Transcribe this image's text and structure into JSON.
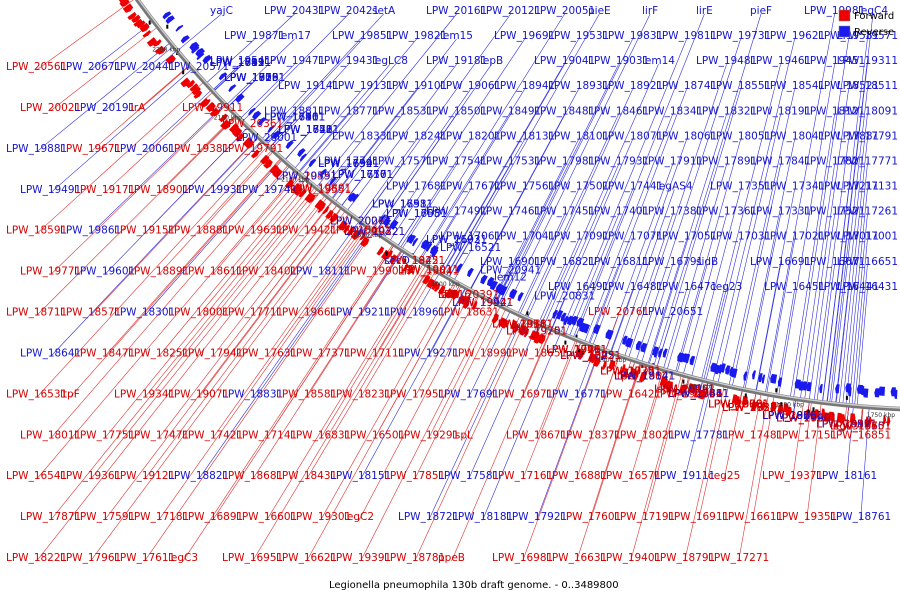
{
  "caption": "Legionella pneumophila 130b draft genome. - 0..3489800",
  "legend": [
    {
      "label": "Forward",
      "color": "#ee0000"
    },
    {
      "label": "Reverse",
      "color": "#1a1aee"
    }
  ],
  "scale_ticks": [
    "2250 kbp",
    "2200 kbp",
    "2150 kbp",
    "2100 kbp",
    "2050 kbp",
    "2000 kbp",
    "1950 kbp",
    "1900 kbp",
    "1850 kbp",
    "1800 kbp",
    "1750 kbp"
  ],
  "labels": [
    {
      "t": "yajC",
      "s": "r"
    },
    {
      "t": "LPW_20431",
      "s": "r"
    },
    {
      "t": "LPW_20421",
      "s": "r"
    },
    {
      "t": "setA",
      "s": "r"
    },
    {
      "t": "LPW_20161",
      "s": "r"
    },
    {
      "t": "LPW_20121",
      "s": "r"
    },
    {
      "t": "LPW_20051",
      "s": "r"
    },
    {
      "t": "pieE",
      "s": "r"
    },
    {
      "t": "lirF",
      "s": "r"
    },
    {
      "t": "lirE",
      "s": "r"
    },
    {
      "t": "pieF",
      "s": "r"
    },
    {
      "t": "LPW_19981",
      "s": "r"
    },
    {
      "t": "legC4",
      "s": "r"
    },
    {
      "t": "LPW_19871",
      "s": "r"
    },
    {
      "t": "lem17",
      "s": "r"
    },
    {
      "t": "LPW_19851",
      "s": "r"
    },
    {
      "t": "LPW_19821",
      "s": "r"
    },
    {
      "t": "lem15",
      "s": "r"
    },
    {
      "t": "LPW_19691",
      "s": "r"
    },
    {
      "t": "LPW_19531",
      "s": "r"
    },
    {
      "t": "LPW_19831",
      "s": "r"
    },
    {
      "t": "LPW_19811",
      "s": "r"
    },
    {
      "t": "LPW_19731",
      "s": "r"
    },
    {
      "t": "LPW_19621",
      "s": "r"
    },
    {
      "t": "LPW_19581",
      "s": "r"
    },
    {
      "t": "LPW_19571",
      "s": "r"
    },
    {
      "t": "LPW_19541",
      "s": "r"
    },
    {
      "t": "LPW_19471",
      "s": "r"
    },
    {
      "t": "LPW_19431",
      "s": "r"
    },
    {
      "t": "legLC8",
      "s": "r"
    },
    {
      "t": "LPW_19181",
      "s": "r"
    },
    {
      "t": "lepB",
      "s": "r"
    },
    {
      "t": "LPW_19041",
      "s": "r"
    },
    {
      "t": "LPW_19031",
      "s": "r"
    },
    {
      "t": "lem14",
      "s": "r"
    },
    {
      "t": "LPW_19481",
      "s": "r"
    },
    {
      "t": "LPW_19461",
      "s": "r"
    },
    {
      "t": "LPW_19451",
      "s": "r"
    },
    {
      "t": "LPW_19311",
      "s": "r"
    },
    {
      "t": "LPW_19191",
      "s": "r"
    },
    {
      "t": "LPW_19141",
      "s": "r"
    },
    {
      "t": "LPW_19131",
      "s": "r"
    },
    {
      "t": "LPW_19101",
      "s": "r"
    },
    {
      "t": "LPW_19061",
      "s": "r"
    },
    {
      "t": "LPW_18941",
      "s": "r"
    },
    {
      "t": "LPW_18931",
      "s": "r"
    },
    {
      "t": "LPW_18921",
      "s": "r"
    },
    {
      "t": "LPW_18741",
      "s": "r"
    },
    {
      "t": "LPW_18551",
      "s": "r"
    },
    {
      "t": "LPW_18541",
      "s": "r"
    },
    {
      "t": "LPW_18521",
      "s": "r"
    },
    {
      "t": "LPW_18511",
      "s": "r"
    },
    {
      "t": "LPW_18911",
      "s": "r"
    },
    {
      "t": "LPW_18811",
      "s": "r"
    },
    {
      "t": "LPW_18771",
      "s": "r"
    },
    {
      "t": "LPW_18531",
      "s": "r"
    },
    {
      "t": "LPW_18501",
      "s": "r"
    },
    {
      "t": "LPW_18491",
      "s": "r"
    },
    {
      "t": "LPW_18481",
      "s": "r"
    },
    {
      "t": "LPW_18461",
      "s": "r"
    },
    {
      "t": "LPW_18341",
      "s": "r"
    },
    {
      "t": "LPW_18321",
      "s": "r"
    },
    {
      "t": "LPW_18191",
      "s": "r"
    },
    {
      "t": "LPW_18121",
      "s": "r"
    },
    {
      "t": "LPW_18091",
      "s": "r"
    },
    {
      "t": "LPW_18081",
      "s": "r"
    },
    {
      "t": "LPW_18411",
      "s": "r"
    },
    {
      "t": "LPW_18331",
      "s": "r"
    },
    {
      "t": "LPW_18241",
      "s": "r"
    },
    {
      "t": "LPW_18201",
      "s": "r"
    },
    {
      "t": "LPW_18131",
      "s": "r"
    },
    {
      "t": "LPW_18101",
      "s": "r"
    },
    {
      "t": "LPW_18071",
      "s": "r"
    },
    {
      "t": "LPW_18061",
      "s": "r"
    },
    {
      "t": "LPW_18051",
      "s": "r"
    },
    {
      "t": "LPW_18041",
      "s": "r"
    },
    {
      "t": "LPW_17881",
      "s": "r"
    },
    {
      "t": "LPW_17791",
      "s": "r"
    },
    {
      "t": "LPW_17831",
      "s": "r"
    },
    {
      "t": "LPW_17811",
      "s": "r"
    },
    {
      "t": "LPW_17741",
      "s": "r"
    },
    {
      "t": "LPW_17571",
      "s": "r"
    },
    {
      "t": "LPW_17541",
      "s": "r"
    },
    {
      "t": "LPW_17531",
      "s": "r"
    },
    {
      "t": "LPW_17981",
      "s": "r"
    },
    {
      "t": "LPW_17931",
      "s": "r"
    },
    {
      "t": "LPW_17911",
      "s": "r"
    },
    {
      "t": "LPW_17891",
      "s": "r"
    },
    {
      "t": "LPW_17841",
      "s": "r"
    },
    {
      "t": "LPW_17821",
      "s": "r"
    },
    {
      "t": "LPW_17771",
      "s": "r"
    },
    {
      "t": "LPW_17761",
      "s": "r"
    },
    {
      "t": "LPW_17721",
      "s": "r"
    },
    {
      "t": "LPW_17701",
      "s": "r"
    },
    {
      "t": "LPW_17681",
      "s": "r"
    },
    {
      "t": "LPW_17671",
      "s": "r"
    },
    {
      "t": "LPW_17561",
      "s": "r"
    },
    {
      "t": "LPW_17501",
      "s": "r"
    },
    {
      "t": "LPW_17441",
      "s": "r"
    },
    {
      "t": "legAS4",
      "s": "r"
    },
    {
      "t": "LPW_17351",
      "s": "r"
    },
    {
      "t": "LPW_17341",
      "s": "r"
    },
    {
      "t": "LPW_17211",
      "s": "r"
    },
    {
      "t": "LPW_17131",
      "s": "r"
    },
    {
      "t": "LPW_17121",
      "s": "r"
    },
    {
      "t": "LPW_17101",
      "s": "r"
    },
    {
      "t": "LPW_17521",
      "s": "r"
    },
    {
      "t": "LPW_17511",
      "s": "r"
    },
    {
      "t": "LPW_17491",
      "s": "r"
    },
    {
      "t": "LPW_17461",
      "s": "r"
    },
    {
      "t": "LPW_17451",
      "s": "r"
    },
    {
      "t": "LPW_17401",
      "s": "r"
    },
    {
      "t": "LPW_17381",
      "s": "r"
    },
    {
      "t": "LPW_17361",
      "s": "r"
    },
    {
      "t": "LPW_17331",
      "s": "r"
    },
    {
      "t": "LPW_17321",
      "s": "r"
    },
    {
      "t": "LPW_17261",
      "s": "r"
    },
    {
      "t": "LPW_17251",
      "s": "r"
    },
    {
      "t": "LPW_17201",
      "s": "r"
    },
    {
      "t": "LPW_17171",
      "s": "r"
    },
    {
      "t": "LPW_17081",
      "s": "r"
    },
    {
      "t": "LPW_17061",
      "s": "r"
    },
    {
      "t": "LPW_17041",
      "s": "r"
    },
    {
      "t": "LPW_17091",
      "s": "r"
    },
    {
      "t": "LPW_17071",
      "s": "r"
    },
    {
      "t": "LPW_17051",
      "s": "r"
    },
    {
      "t": "LPW_17031",
      "s": "r"
    },
    {
      "t": "LPW_17021",
      "s": "r"
    },
    {
      "t": "LPW_17011",
      "s": "r"
    },
    {
      "t": "LPW_17001",
      "s": "r"
    },
    {
      "t": "LPW_16991",
      "s": "r"
    },
    {
      "t": "LPW_16961",
      "s": "r"
    },
    {
      "t": "LPW_16941",
      "s": "r"
    },
    {
      "t": "LPW_16931",
      "s": "r"
    },
    {
      "t": "LPW_16921",
      "s": "r"
    },
    {
      "t": "LPW_16901",
      "s": "r"
    },
    {
      "t": "LPW_16821",
      "s": "r"
    },
    {
      "t": "LPW_16811",
      "s": "r"
    },
    {
      "t": "LPW_16791",
      "s": "r"
    },
    {
      "t": "sidB",
      "s": "r"
    },
    {
      "t": "LPW_16691",
      "s": "r"
    },
    {
      "t": "LPW_16671",
      "s": "r"
    },
    {
      "t": "LPW_16651",
      "s": "r"
    },
    {
      "t": "LPW_16591",
      "s": "r"
    },
    {
      "t": "LPW_16581",
      "s": "r"
    },
    {
      "t": "LPW_16561",
      "s": "r"
    },
    {
      "t": "LPW_16551",
      "s": "r"
    },
    {
      "t": "LPW_16521",
      "s": "r"
    },
    {
      "t": "lem12",
      "s": "r"
    },
    {
      "t": "LPW_16491",
      "s": "r"
    },
    {
      "t": "LPW_16481",
      "s": "r"
    },
    {
      "t": "LPW_16471",
      "s": "r"
    },
    {
      "t": "ceg23",
      "s": "r"
    },
    {
      "t": "LPW_16451",
      "s": "r"
    },
    {
      "t": "LPW_16441",
      "s": "r"
    },
    {
      "t": "LPW_16431",
      "s": "r"
    },
    {
      "t": "LPW_16411",
      "s": "r"
    },
    {
      "t": "LPW_16401",
      "s": "r"
    },
    {
      "t": "LPW_16391",
      "s": "r"
    },
    {
      "t": "LPW_16381",
      "s": "r"
    },
    {
      "t": "LPW_21031",
      "s": "r"
    },
    {
      "t": "LPW_20941",
      "s": "r"
    },
    {
      "t": "LPW_20831",
      "s": "r"
    },
    {
      "t": "LPW_20761",
      "s": "f"
    },
    {
      "t": "LPW_20651",
      "s": "r"
    },
    {
      "t": "LPW_20561",
      "s": "f"
    },
    {
      "t": "LPW_20671",
      "s": "r"
    },
    {
      "t": "LPW_20441",
      "s": "r"
    },
    {
      "t": "LPW_20571",
      "s": "r"
    },
    {
      "t": "LPW_20361",
      "s": "f"
    },
    {
      "t": "LPW_20451",
      "s": "f"
    },
    {
      "t": "LPW_20261",
      "s": "f"
    },
    {
      "t": "secD",
      "s": "r"
    },
    {
      "t": "LPW_20391",
      "s": "f"
    },
    {
      "t": "LPW_20181",
      "s": "f"
    },
    {
      "t": "LPW_20461",
      "s": "f"
    },
    {
      "t": "LPW_20301",
      "s": "f"
    },
    {
      "t": "LPW_20101",
      "s": "f"
    },
    {
      "t": "LPW_20381",
      "s": "f"
    },
    {
      "t": "LPW_20211",
      "s": "f"
    },
    {
      "t": "LPW_20171",
      "s": "f"
    },
    {
      "t": "LPW_20021",
      "s": "f"
    },
    {
      "t": "LPW_20191",
      "s": "r"
    },
    {
      "t": "lirA",
      "s": "f"
    },
    {
      "t": "LPW_19911",
      "s": "f"
    },
    {
      "t": "LPW_20001",
      "s": "r"
    },
    {
      "t": "LPW_19801",
      "s": "f"
    },
    {
      "t": "LPW_20221",
      "s": "f"
    },
    {
      "t": "lirB",
      "s": "f"
    },
    {
      "t": "LPW_19921",
      "s": "r"
    },
    {
      "t": "LPW_19701",
      "s": "f"
    },
    {
      "t": "LPW_20231",
      "s": "f"
    },
    {
      "t": "LPW_19841",
      "s": "f"
    },
    {
      "t": "LPW_19611",
      "s": "r"
    },
    {
      "t": "LPW_20241",
      "s": "f"
    },
    {
      "t": "LPW_20031",
      "s": "f"
    },
    {
      "t": "LPW_19501",
      "s": "r"
    },
    {
      "t": "LPW_19881",
      "s": "r"
    },
    {
      "t": "LPW_19671",
      "s": "f"
    },
    {
      "t": "LPW_20061",
      "s": "r"
    },
    {
      "t": "LPW_19381",
      "s": "f"
    },
    {
      "t": "LPW_19791",
      "s": "f"
    },
    {
      "t": "LPW_19591",
      "s": "r"
    },
    {
      "t": "LPW_20071",
      "s": "r"
    },
    {
      "t": "LPW_19221",
      "s": "f"
    },
    {
      "t": "lem16",
      "s": "f"
    },
    {
      "t": "LPW_19511",
      "s": "f"
    },
    {
      "t": "LPW_19711",
      "s": "f"
    },
    {
      "t": "LPW_19241",
      "s": "f"
    },
    {
      "t": "lspM",
      "s": "f"
    },
    {
      "t": "LPW_20081",
      "s": "f"
    },
    {
      "t": "LPW_19681",
      "s": "f"
    },
    {
      "t": "LPW_19891",
      "s": "r"
    },
    {
      "t": "LPW_19491",
      "s": "r"
    },
    {
      "t": "LPW_19171",
      "s": "f"
    },
    {
      "t": "LPW_18901",
      "s": "f"
    },
    {
      "t": "LPW_19931",
      "s": "r"
    },
    {
      "t": "LPW_19741",
      "s": "r"
    },
    {
      "t": "LPW_19551",
      "s": "f"
    },
    {
      "t": "LPW_19321",
      "s": "r"
    },
    {
      "t": "LPW_19011",
      "s": "f"
    },
    {
      "t": "LPW_19941",
      "s": "r"
    },
    {
      "t": "LPW_19751",
      "s": "r"
    },
    {
      "t": "LPW_18731",
      "s": "r"
    },
    {
      "t": "ltpG",
      "s": "f"
    },
    {
      "t": "LPW_19521",
      "s": "f"
    },
    {
      "t": "LPW_19331",
      "s": "f"
    },
    {
      "t": "LPW_19021",
      "s": "f"
    },
    {
      "t": "LPW_18751",
      "s": "f"
    },
    {
      "t": "LPW_18591",
      "s": "f"
    },
    {
      "t": "LPW_19861",
      "s": "r"
    },
    {
      "t": "LPW_19151",
      "s": "f"
    },
    {
      "t": "LPW_18881",
      "s": "f"
    },
    {
      "t": "LPW_19631",
      "s": "f"
    },
    {
      "t": "LPW_19421",
      "s": "f"
    },
    {
      "t": "LPW_18601",
      "s": "f"
    },
    {
      "t": "LPW_18451",
      "s": "f"
    },
    {
      "t": "ralF",
      "s": "f"
    },
    {
      "t": "LPW_19761",
      "s": "f"
    },
    {
      "t": "LPW_19561",
      "s": "f"
    },
    {
      "t": "LPW_19251",
      "s": "f"
    },
    {
      "t": "LPW_18981",
      "s": "r"
    },
    {
      "t": "LPW_18701",
      "s": "f"
    },
    {
      "t": "LPW_18561",
      "s": "f"
    },
    {
      "t": "LPW_18351",
      "s": "r"
    },
    {
      "t": "LPW_19771",
      "s": "f"
    },
    {
      "t": "LPW_19601",
      "s": "r"
    },
    {
      "t": "LPW_18891",
      "s": "f"
    },
    {
      "t": "LPW_18611",
      "s": "f"
    },
    {
      "t": "LPW_18401",
      "s": "f"
    },
    {
      "t": "LPW_18111",
      "s": "r"
    },
    {
      "t": "LPW_19901",
      "s": "f"
    },
    {
      "t": "LPW_19641",
      "s": "f"
    },
    {
      "t": "LPW_19441",
      "s": "f"
    },
    {
      "t": "LPW_19201",
      "s": "f"
    },
    {
      "t": "LPW_18951",
      "s": "r"
    },
    {
      "t": "LPW_18621",
      "s": "f"
    },
    {
      "t": "LPW_18441",
      "s": "f"
    },
    {
      "t": "LPW_18211",
      "s": "f"
    },
    {
      "t": "LPW_17901",
      "s": "r"
    },
    {
      "t": "LPW_19651",
      "s": "f"
    },
    {
      "t": "LPW_18711",
      "s": "f"
    },
    {
      "t": "LPW_18571",
      "s": "f"
    },
    {
      "t": "LPW_18301",
      "s": "r"
    },
    {
      "t": "LPW_18001",
      "s": "f"
    },
    {
      "t": "LPW_17711",
      "s": "f"
    },
    {
      "t": "LPW_19661",
      "s": "f"
    },
    {
      "t": "LPW_19211",
      "s": "r"
    },
    {
      "t": "LPW_18961",
      "s": "r"
    },
    {
      "t": "LPW_18631",
      "s": "f"
    },
    {
      "t": "LPW_18381",
      "s": "f"
    },
    {
      "t": "LPW_17991",
      "s": "f"
    },
    {
      "t": "LPW_17731",
      "s": "f"
    },
    {
      "t": "LPW_17431",
      "s": "f"
    },
    {
      "t": "LPW_19781",
      "s": "f"
    },
    {
      "t": "LPW_19261",
      "s": "r"
    },
    {
      "t": "LPW_18971",
      "s": "r"
    },
    {
      "t": "LPW_18641",
      "s": "r"
    },
    {
      "t": "LPW_18471",
      "s": "f"
    },
    {
      "t": "LPW_18251",
      "s": "f"
    },
    {
      "t": "LPW_17941",
      "s": "f"
    },
    {
      "t": "LPW_17631",
      "s": "f"
    },
    {
      "t": "LPW_17371",
      "s": "f"
    },
    {
      "t": "LPW_17111",
      "s": "f"
    },
    {
      "t": "LPW_19271",
      "s": "r"
    },
    {
      "t": "LPW_18991",
      "s": "f"
    },
    {
      "t": "LPW_18651",
      "s": "f"
    },
    {
      "t": "LPW_18421",
      "s": "f"
    },
    {
      "t": "LPW_18141",
      "s": "r"
    },
    {
      "t": "LPW_17861",
      "s": "r"
    },
    {
      "t": "LPW_17551",
      "s": "f"
    },
    {
      "t": "LPW_17221",
      "s": "f"
    },
    {
      "t": "legL3",
      "s": "f"
    },
    {
      "t": "LPW_16531",
      "s": "f"
    },
    {
      "t": "ltpF",
      "s": "f"
    },
    {
      "t": "LPW_19341",
      "s": "f"
    },
    {
      "t": "LPW_19071",
      "s": "f"
    },
    {
      "t": "LPW_18831",
      "s": "r"
    },
    {
      "t": "LPW_18581",
      "s": "f"
    },
    {
      "t": "LPW_18231",
      "s": "f"
    },
    {
      "t": "LPW_17951",
      "s": "f"
    },
    {
      "t": "LPW_17691",
      "s": "r"
    },
    {
      "t": "LPW_16971",
      "s": "f"
    },
    {
      "t": "LPW_16771",
      "s": "r"
    },
    {
      "t": "LPW_16421",
      "s": "f"
    },
    {
      "t": "LPW_19281",
      "s": "f"
    },
    {
      "t": "LPW_19001",
      "s": "f"
    },
    {
      "t": "LPW_18661",
      "s": "r"
    },
    {
      "t": "LPW_18361",
      "s": "f"
    },
    {
      "t": "LPW_18011",
      "s": "f"
    },
    {
      "t": "LPW_17751",
      "s": "f"
    },
    {
      "t": "LPW_17471",
      "s": "f"
    },
    {
      "t": "LPW_17421",
      "s": "f"
    },
    {
      "t": "LPW_17141",
      "s": "f"
    },
    {
      "t": "LPW_16831",
      "s": "f"
    },
    {
      "t": "LPW_16501",
      "s": "f"
    },
    {
      "t": "LPW_19291",
      "s": "f"
    },
    {
      "t": "lspL",
      "s": "f"
    },
    {
      "t": "LPW_18671",
      "s": "f"
    },
    {
      "t": "LPW_18371",
      "s": "f"
    },
    {
      "t": "LPW_18021",
      "s": "f"
    },
    {
      "t": "LPW_17781",
      "s": "r"
    },
    {
      "t": "LPW_17481",
      "s": "f"
    },
    {
      "t": "LPW_17151",
      "s": "f"
    },
    {
      "t": "LPW_16851",
      "s": "f"
    },
    {
      "t": "LPW_16541",
      "s": "f"
    },
    {
      "t": "LPW_19361",
      "s": "f"
    },
    {
      "t": "LPW_19121",
      "s": "f"
    },
    {
      "t": "LPW_18821",
      "s": "r"
    },
    {
      "t": "LPW_18681",
      "s": "f"
    },
    {
      "t": "LPW_18431",
      "s": "f"
    },
    {
      "t": "LPW_18151",
      "s": "r"
    },
    {
      "t": "LPW_17851",
      "s": "f"
    },
    {
      "t": "LPW_17581",
      "s": "r"
    },
    {
      "t": "LPW_17161",
      "s": "f"
    },
    {
      "t": "LPW_16881",
      "s": "f"
    },
    {
      "t": "LPW_16571",
      "s": "f"
    },
    {
      "t": "LPW_19111",
      "s": "r"
    },
    {
      "t": "ceg25",
      "s": "f"
    },
    {
      "t": "LPW_19371",
      "s": "f"
    },
    {
      "t": "LPW_18161",
      "s": "r"
    },
    {
      "t": "LPW_17871",
      "s": "f"
    },
    {
      "t": "LPW_17591",
      "s": "f"
    },
    {
      "t": "LPW_17181",
      "s": "f"
    },
    {
      "t": "LPW_16891",
      "s": "f"
    },
    {
      "t": "LPW_16601",
      "s": "f"
    },
    {
      "t": "LPW_19301",
      "s": "f"
    },
    {
      "t": "legC2",
      "s": "f"
    },
    {
      "t": "LPW_18721",
      "s": "r"
    },
    {
      "t": "LPW_18181",
      "s": "r"
    },
    {
      "t": "LPW_17921",
      "s": "r"
    },
    {
      "t": "LPW_17601",
      "s": "f"
    },
    {
      "t": "LPW_17191",
      "s": "f"
    },
    {
      "t": "LPW_16911",
      "s": "f"
    },
    {
      "t": "LPW_16611",
      "s": "f"
    },
    {
      "t": "LPW_19351",
      "s": "f"
    },
    {
      "t": "LPW_18761",
      "s": "r"
    },
    {
      "t": "LPW_18221",
      "s": "f"
    },
    {
      "t": "LPW_17961",
      "s": "f"
    },
    {
      "t": "LPW_17611",
      "s": "f"
    },
    {
      "t": "legC3",
      "s": "f"
    },
    {
      "t": "LPW_16951",
      "s": "f"
    },
    {
      "t": "LPW_16621",
      "s": "f"
    },
    {
      "t": "LPW_19391",
      "s": "f"
    },
    {
      "t": "LPW_18781",
      "s": "f"
    },
    {
      "t": "ppeB",
      "s": "f"
    },
    {
      "t": "LPW_16981",
      "s": "f"
    },
    {
      "t": "LPW_16631",
      "s": "f"
    },
    {
      "t": "LPW_19401",
      "s": "f"
    },
    {
      "t": "LPW_18791",
      "s": "f"
    },
    {
      "t": "LPW_17271",
      "s": "f"
    }
  ]
}
